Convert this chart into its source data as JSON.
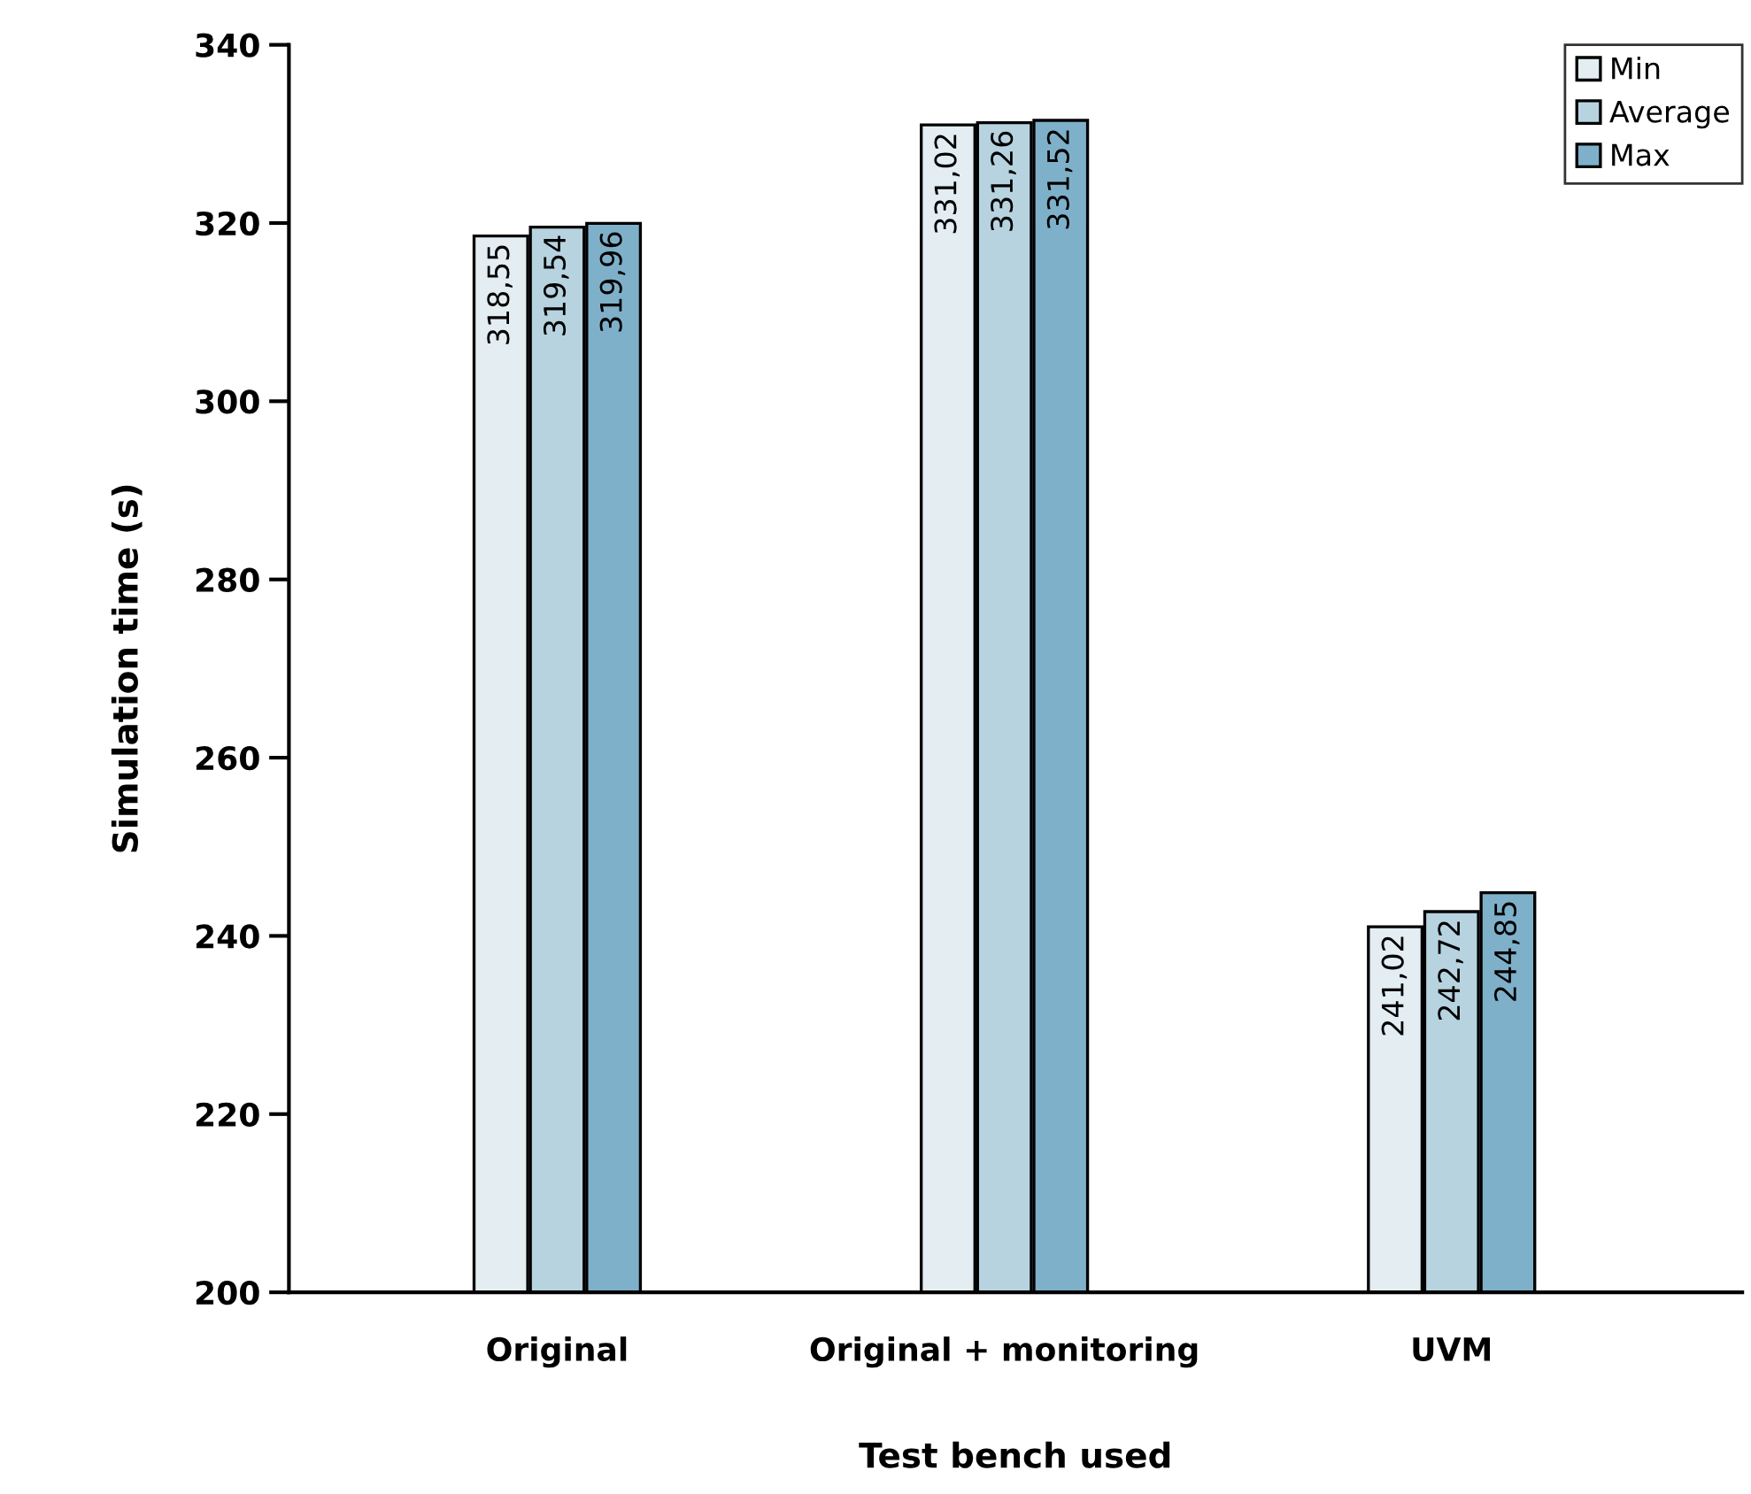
{
  "chart_data": {
    "type": "bar",
    "xlabel": "Test bench used",
    "ylabel": "Simulation time (s)",
    "categories": [
      "Original",
      "Original + monitoring",
      "UVM"
    ],
    "series": [
      {
        "name": "Min",
        "color": "#e4eef2",
        "values": [
          318.55,
          331.02,
          241.02
        ],
        "value_labels": [
          "318,55",
          "331,02",
          "241,02"
        ]
      },
      {
        "name": "Average",
        "color": "#b7d3e0",
        "values": [
          319.54,
          331.26,
          242.72
        ],
        "value_labels": [
          "319,54",
          "331,26",
          "242,72"
        ]
      },
      {
        "name": "Max",
        "color": "#7fb0c9",
        "values": [
          319.96,
          331.52,
          244.85
        ],
        "value_labels": [
          "319,96",
          "331,52",
          "244,85"
        ]
      }
    ],
    "ylim": [
      200,
      340
    ],
    "yticks": [
      200,
      220,
      240,
      260,
      280,
      300,
      320,
      340
    ],
    "grid": false,
    "legend": "top right"
  }
}
